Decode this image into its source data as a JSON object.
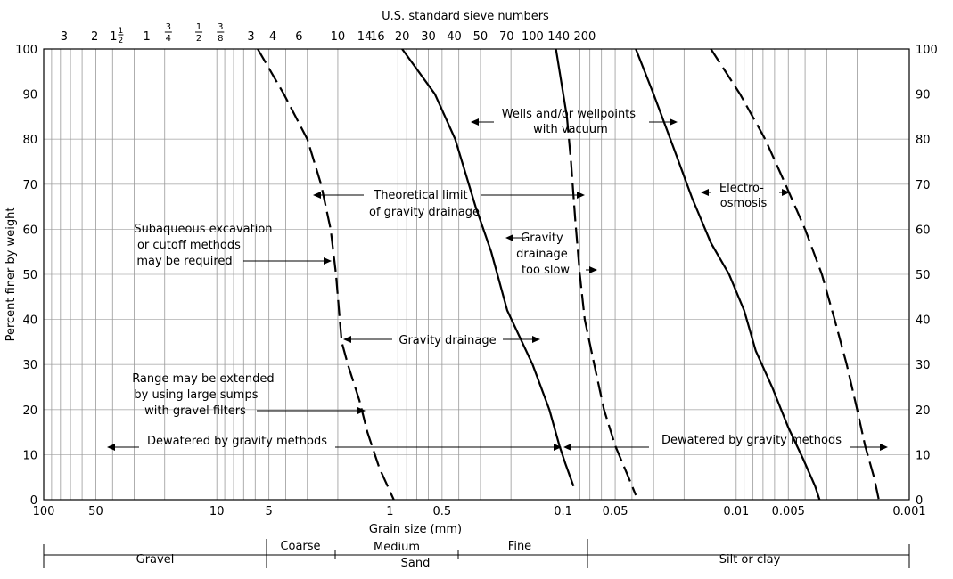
{
  "chart_data": {
    "type": "line",
    "title": "U.S. standard sieve numbers",
    "xlabel": "Grain size (mm)",
    "ylabel": "Percent finer by weight",
    "x_scale": "log",
    "x_reversed": true,
    "xlim": [
      100,
      0.001
    ],
    "ylim": [
      0,
      100
    ],
    "grid": true,
    "x_ticks": [
      {
        "v": 100,
        "label": "100"
      },
      {
        "v": 50,
        "label": "50"
      },
      {
        "v": 10,
        "label": "10"
      },
      {
        "v": 5,
        "label": "5"
      },
      {
        "v": 1,
        "label": "1"
      },
      {
        "v": 0.5,
        "label": "0.5"
      },
      {
        "v": 0.1,
        "label": "0.1"
      },
      {
        "v": 0.05,
        "label": "0.05"
      },
      {
        "v": 0.01,
        "label": "0.01"
      },
      {
        "v": 0.005,
        "label": "0.005"
      },
      {
        "v": 0.001,
        "label": "0.001"
      }
    ],
    "y_ticks": [
      0,
      10,
      20,
      30,
      40,
      50,
      60,
      70,
      80,
      90,
      100
    ],
    "sieve_ticks": [
      {
        "v": 76.2,
        "label": "3"
      },
      {
        "v": 50.8,
        "label": "2"
      },
      {
        "v": 38.1,
        "label": "1",
        "frac": "2"
      },
      {
        "v": 25.4,
        "label": "1"
      },
      {
        "v": 19.05,
        "num": "3",
        "den": "4"
      },
      {
        "v": 12.7,
        "num": "1",
        "den": "2"
      },
      {
        "v": 9.525,
        "num": "3",
        "den": "8"
      },
      {
        "v": 6.35,
        "label": "3"
      },
      {
        "v": 4.75,
        "label": "4"
      },
      {
        "v": 3.35,
        "label": "6"
      },
      {
        "v": 2.0,
        "label": "10"
      },
      {
        "v": 1.4,
        "label": "14"
      },
      {
        "v": 1.18,
        "label": "16"
      },
      {
        "v": 0.85,
        "label": "20"
      },
      {
        "v": 0.6,
        "label": "30"
      },
      {
        "v": 0.425,
        "label": "40"
      },
      {
        "v": 0.3,
        "label": "50"
      },
      {
        "v": 0.212,
        "label": "70"
      },
      {
        "v": 0.15,
        "label": "100"
      },
      {
        "v": 0.106,
        "label": "140"
      },
      {
        "v": 0.075,
        "label": "200"
      }
    ],
    "series": [
      {
        "style": "dashed",
        "points": [
          [
            5.8,
            100
          ],
          [
            4.1,
            90
          ],
          [
            3.0,
            80
          ],
          [
            2.5,
            70
          ],
          [
            2.2,
            60
          ],
          [
            2.05,
            50
          ],
          [
            1.95,
            40
          ],
          [
            1.9,
            35
          ],
          [
            1.75,
            30
          ],
          [
            1.5,
            22
          ],
          [
            1.35,
            15
          ],
          [
            1.15,
            7
          ],
          [
            0.95,
            0
          ]
        ]
      },
      {
        "style": "solid",
        "points": [
          [
            0.85,
            100
          ],
          [
            0.55,
            90
          ],
          [
            0.42,
            80
          ],
          [
            0.32,
            65
          ],
          [
            0.26,
            55
          ],
          [
            0.21,
            42
          ],
          [
            0.15,
            30
          ],
          [
            0.12,
            20
          ],
          [
            0.105,
            12
          ],
          [
            0.097,
            8
          ],
          [
            0.087,
            3
          ]
        ]
      },
      {
        "style": "solid",
        "points": [
          [
            0.11,
            100
          ],
          [
            0.095,
            85
          ]
        ]
      },
      {
        "style": "dashed",
        "points": [
          [
            0.095,
            85
          ],
          [
            0.09,
            75
          ],
          [
            0.085,
            62
          ],
          [
            0.08,
            50
          ],
          [
            0.075,
            40
          ],
          [
            0.066,
            30
          ],
          [
            0.058,
            20
          ],
          [
            0.05,
            12
          ],
          [
            0.043,
            6
          ],
          [
            0.038,
            1
          ]
        ]
      },
      {
        "style": "solid",
        "points": [
          [
            0.038,
            100
          ],
          [
            0.03,
            90
          ],
          [
            0.024,
            80
          ],
          [
            0.018,
            67
          ],
          [
            0.014,
            57
          ],
          [
            0.011,
            50
          ],
          [
            0.009,
            42
          ],
          [
            0.0077,
            33
          ],
          [
            0.0062,
            25
          ],
          [
            0.005,
            16
          ],
          [
            0.0041,
            9
          ],
          [
            0.0035,
            3
          ],
          [
            0.0033,
            0
          ]
        ]
      },
      {
        "style": "dashed",
        "points": [
          [
            0.014,
            100
          ],
          [
            0.0095,
            90
          ],
          [
            0.0068,
            80
          ],
          [
            0.0052,
            70
          ],
          [
            0.004,
            60
          ],
          [
            0.0032,
            50
          ],
          [
            0.0027,
            40
          ],
          [
            0.0023,
            30
          ],
          [
            0.002,
            20
          ],
          [
            0.0018,
            12
          ],
          [
            0.0016,
            5
          ],
          [
            0.0015,
            0
          ]
        ]
      }
    ]
  },
  "annotations": {
    "subaqueous": [
      "Subaqueous excavation",
      "or cutoff methods",
      "may be required"
    ],
    "theoretical": [
      "Theoretical limit",
      "of gravity drainage"
    ],
    "wells": [
      "Wells and/or wellpoints",
      "with vacuum"
    ],
    "gravity_slow": [
      "Gravity",
      "drainage",
      "too slow"
    ],
    "electro": [
      "Electro-",
      "osmosis"
    ],
    "gravity_drainage": "Gravity drainage",
    "range_extended": [
      "Range may be extended",
      "by using large sumps",
      "with gravel filters"
    ],
    "dewatered_left": "Dewatered by gravity methods",
    "dewatered_right": "Dewatered by gravity methods"
  },
  "soil_classes": {
    "gravel": "Gravel",
    "coarse": "Coarse",
    "medium": "Medium",
    "fine": "Fine",
    "sand": "Sand",
    "silt_clay": "Silt or clay"
  }
}
